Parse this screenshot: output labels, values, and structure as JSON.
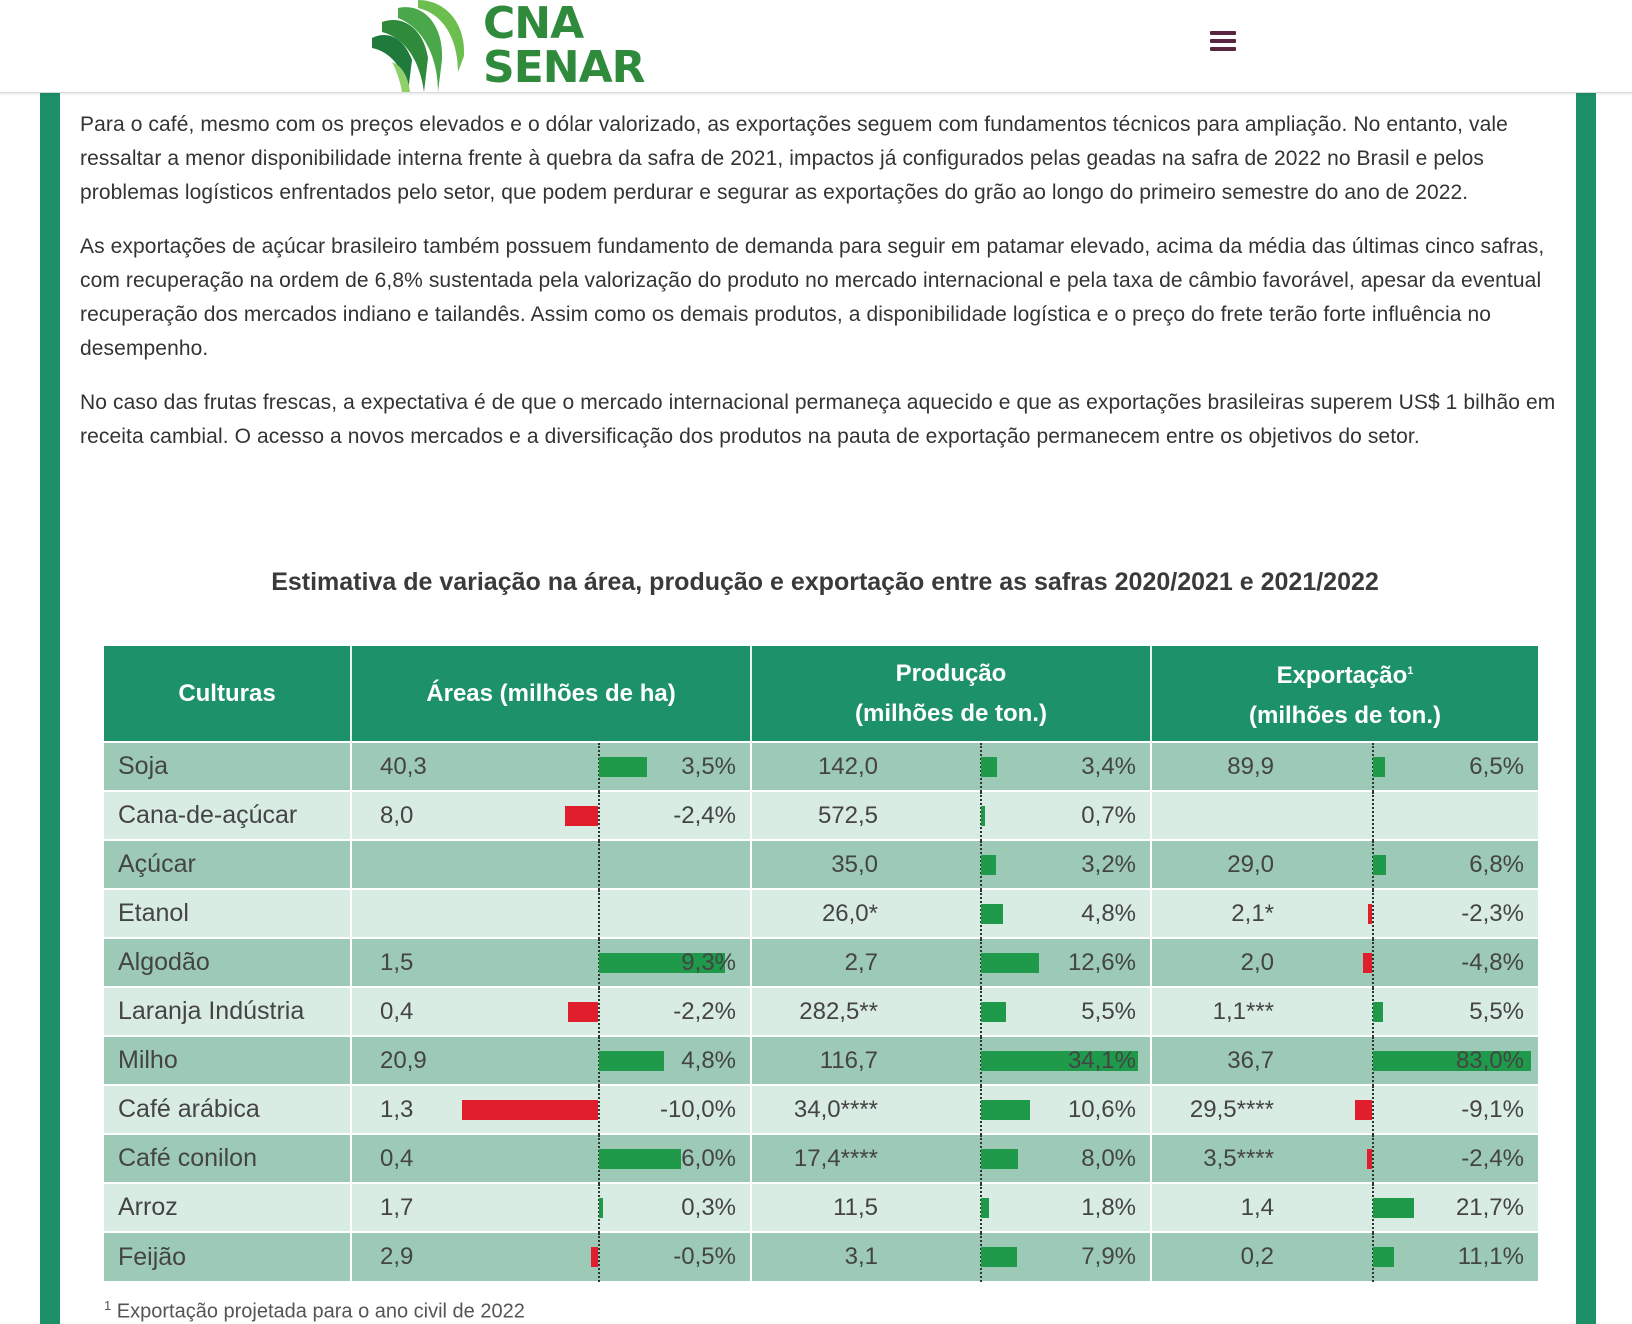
{
  "header": {
    "logo_line1": "CNA",
    "logo_line2": "SENAR",
    "menu_icon": "hamburger-menu-icon"
  },
  "colors": {
    "frame_green": "#1c9169",
    "table_header": "#1d9169",
    "row_dark": "#9ccab6",
    "row_light": "#d9ece3",
    "bar_positive": "#1f9a4b",
    "bar_negative": "#e01e2e",
    "menu_icon": "#5a2540"
  },
  "paragraphs": [
    "Para o café, mesmo com os preços elevados e o dólar valorizado, as exportações seguem com fundamentos técnicos para ampliação. No entanto, vale ressaltar a menor disponibilidade interna frente à quebra da safra de 2021, impactos já configurados pelas geadas na safra de 2022 no Brasil e pelos problemas logísticos enfrentados pelo setor, que podem perdurar e segurar as exportações do grão ao longo do primeiro semestre do ano de 2022.",
    "As exportações de açúcar brasileiro também possuem fundamento de demanda para seguir em patamar elevado, acima da média das últimas cinco safras, com recuperação na ordem de 6,8% sustentada pela valorização do produto no mercado internacional e pela taxa de câmbio favorável, apesar da eventual recuperação dos mercados indiano e tailandês. Assim como os demais produtos, a disponibilidade logística e o preço do frete terão forte influência no desempenho.",
    "No caso das frutas frescas, a expectativa é de que o mercado internacional permaneça aquecido e que as exportações brasileiras superem US$ 1 bilhão em receita cambial. O acesso a novos mercados e a diversificação dos produtos na pauta de exportação permanecem entre os objetivos do setor."
  ],
  "table": {
    "title": "Estimativa de variação na área, produção e exportação entre as safras 2020/2021 e 2021/2022",
    "headers": {
      "cultures": "Culturas",
      "areas": "Áreas (milhões de ha)",
      "production_line1": "Produção",
      "production_line2": "(milhões de ton.)",
      "export_line1": "Exportação",
      "export_sup": "1",
      "export_line2": "(milhões de ton.)"
    },
    "rows": [
      {
        "name": "Soja",
        "area": "40,3",
        "area_pct": "3,5%",
        "area_var": 3.5,
        "prod": "142,0",
        "prod_pct": "3,4%",
        "prod_var": 3.4,
        "exp": "89,9",
        "exp_pct": "6,5%",
        "exp_var": 6.5
      },
      {
        "name": "Cana-de-açúcar",
        "area": "8,0",
        "area_pct": "-2,4%",
        "area_var": -2.4,
        "prod": "572,5",
        "prod_pct": "0,7%",
        "prod_var": 0.7,
        "exp": "",
        "exp_pct": "",
        "exp_var": null
      },
      {
        "name": "Açúcar",
        "area": "",
        "area_pct": "",
        "area_var": null,
        "prod": "35,0",
        "prod_pct": "3,2%",
        "prod_var": 3.2,
        "exp": "29,0",
        "exp_pct": "6,8%",
        "exp_var": 6.8
      },
      {
        "name": "Etanol",
        "area": "",
        "area_pct": "",
        "area_var": null,
        "prod": "26,0*",
        "prod_pct": "4,8%",
        "prod_var": 4.8,
        "exp": "2,1*",
        "exp_pct": "-2,3%",
        "exp_var": -2.3
      },
      {
        "name": "Algodão",
        "area": "1,5",
        "area_pct": "9,3%",
        "area_var": 9.3,
        "prod": "2,7",
        "prod_pct": "12,6%",
        "prod_var": 12.6,
        "exp": "2,0",
        "exp_pct": "-4,8%",
        "exp_var": -4.8
      },
      {
        "name": "Laranja Indústria",
        "area": "0,4",
        "area_pct": "-2,2%",
        "area_var": -2.2,
        "prod": "282,5**",
        "prod_pct": "5,5%",
        "prod_var": 5.5,
        "exp": "1,1***",
        "exp_pct": "5,5%",
        "exp_var": 5.5
      },
      {
        "name": "Milho",
        "area": "20,9",
        "area_pct": "4,8%",
        "area_var": 4.8,
        "prod": "116,7",
        "prod_pct": "34,1%",
        "prod_var": 34.1,
        "exp": "36,7",
        "exp_pct": "83,0%",
        "exp_var": 83.0
      },
      {
        "name": "Café arábica",
        "area": "1,3",
        "area_pct": "-10,0%",
        "area_var": -10.0,
        "prod": "34,0****",
        "prod_pct": "10,6%",
        "prod_var": 10.6,
        "exp": "29,5****",
        "exp_pct": "-9,1%",
        "exp_var": -9.1
      },
      {
        "name": "Café conilon",
        "area": "0,4",
        "area_pct": "6,0%",
        "area_var": 6.0,
        "prod": "17,4****",
        "prod_pct": "8,0%",
        "prod_var": 8.0,
        "exp": "3,5****",
        "exp_pct": "-2,4%",
        "exp_var": -2.4
      },
      {
        "name": "Arroz",
        "area": "1,7",
        "area_pct": "0,3%",
        "area_var": 0.3,
        "prod": "11,5",
        "prod_pct": "1,8%",
        "prod_var": 1.8,
        "exp": "1,4",
        "exp_pct": "21,7%",
        "exp_var": 21.7
      },
      {
        "name": "Feijão",
        "area": "2,9",
        "area_pct": "-0,5%",
        "area_var": -0.5,
        "prod": "3,1",
        "prod_pct": "7,9%",
        "prod_var": 7.9,
        "exp": "0,2",
        "exp_pct": "11,1%",
        "exp_var": 11.1
      }
    ],
    "footnote_mark": "1",
    "footnote": "Exportação projetada para o ano civil de 2022"
  }
}
